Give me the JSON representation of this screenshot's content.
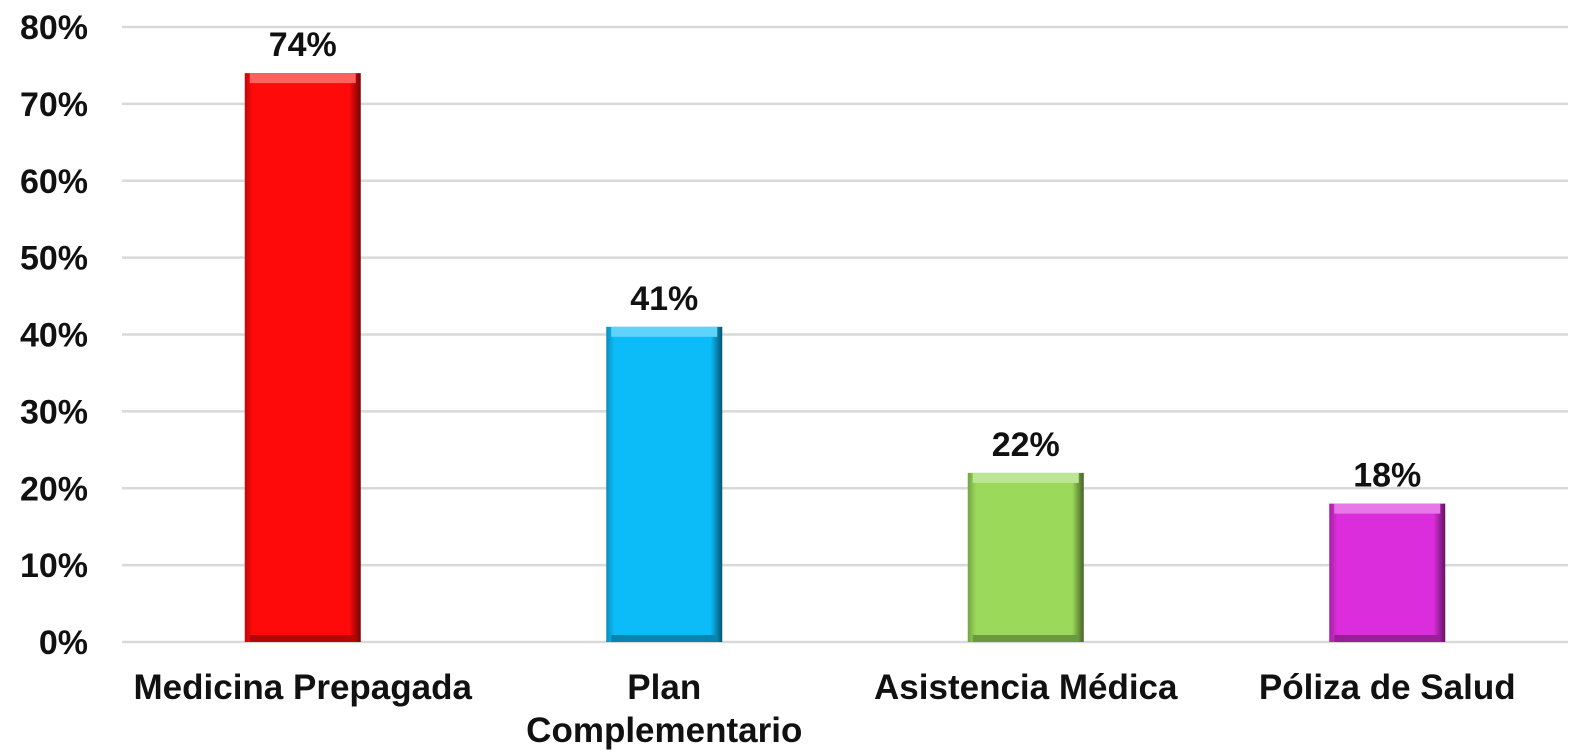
{
  "chart_data": {
    "type": "bar",
    "categories": [
      "Medicina Prepagada",
      "Plan Complementario",
      "Asistencia Médica",
      "Póliza de Salud"
    ],
    "category_lines": [
      [
        "Medicina Prepagada"
      ],
      [
        "Plan",
        "Complementario"
      ],
      [
        "Asistencia Médica"
      ],
      [
        "Póliza de Salud"
      ]
    ],
    "values": [
      74,
      41,
      22,
      18
    ],
    "value_labels": [
      "74%",
      "41%",
      "22%",
      "18%"
    ],
    "colors": [
      "#ff0a0a",
      "#0bbcf8",
      "#9ad95a",
      "#db2ddb"
    ],
    "ylim": [
      0,
      80
    ],
    "yticks": [
      0,
      10,
      20,
      30,
      40,
      50,
      60,
      70,
      80
    ],
    "ytick_labels": [
      "0%",
      "10%",
      "20%",
      "30%",
      "40%",
      "50%",
      "60%",
      "70%",
      "80%"
    ],
    "grid": true,
    "title": "",
    "xlabel": "",
    "ylabel": ""
  }
}
